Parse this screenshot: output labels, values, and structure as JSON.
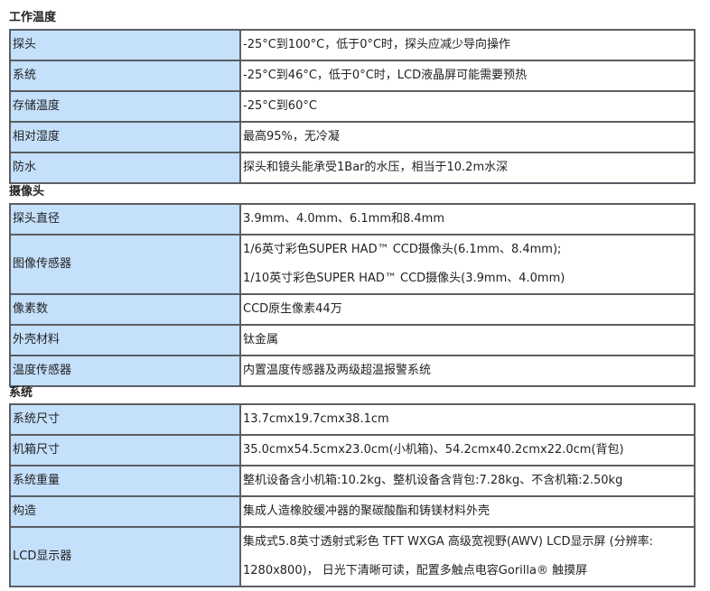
{
  "sections": [
    {
      "title": "工作温度",
      "rows": [
        {
          "label": "探头",
          "value": [
            "-25°C到100°C，低于0°C时，探头应减少导向操作"
          ]
        },
        {
          "label": "系统",
          "value": [
            "-25°C到46°C，低于0°C时，LCD液晶屏可能需要预热"
          ]
        },
        {
          "label": "存储温度",
          "value": [
            "-25°C到60°C"
          ]
        },
        {
          "label": "相对湿度",
          "value": [
            "最高95%，无冷凝"
          ]
        },
        {
          "label": "防水",
          "value": [
            "探头和镜头能承受1Bar的水压，相当于10.2m水深"
          ]
        }
      ]
    },
    {
      "title": "摄像头",
      "rows": [
        {
          "label": "探头直径",
          "value": [
            "3.9mm、4.0mm、6.1mm和8.4mm"
          ]
        },
        {
          "label": "图像传感器",
          "value": [
            "1/6英寸彩色SUPER HAD™ CCD摄像头(6.1mm、8.4mm);",
            "1/10英寸彩色SUPER HAD™ CCD摄像头(3.9mm、4.0mm)"
          ]
        },
        {
          "label": "像素数",
          "value": [
            "CCD原生像素44万"
          ]
        },
        {
          "label": "外壳材料",
          "value": [
            "钛金属"
          ]
        },
        {
          "label": "温度传感器",
          "value": [
            "内置温度传感器及两级超温报警系统"
          ]
        }
      ]
    },
    {
      "title": "系统",
      "rows": [
        {
          "label": "系统尺寸",
          "value": [
            "13.7cmx19.7cmx38.1cm"
          ]
        },
        {
          "label": "机箱尺寸",
          "value": [
            "35.0cmx54.5cmx23.0cm(小机箱)、54.2cmx40.2cmx22.0cm(背包)"
          ]
        },
        {
          "label": "系统重量",
          "value": [
            "整机设备含小机箱:10.2kg、整机设备含背包:7.28kg、不含机箱:2.50kg"
          ]
        },
        {
          "label": "构造",
          "value": [
            "集成人造橡胶缓冲器的聚碳酸酯和铸镁材料外壳"
          ]
        },
        {
          "label": "LCD显示器",
          "value": [
            "集成式5.8英寸透射式彩色 TFT WXGA 高级宽视野(AWV) LCD显示屏 (分辨率:",
            "1280x800)， 日光下清晰可读，配置多触点电容Gorilla® 触摸屏"
          ]
        }
      ]
    }
  ]
}
